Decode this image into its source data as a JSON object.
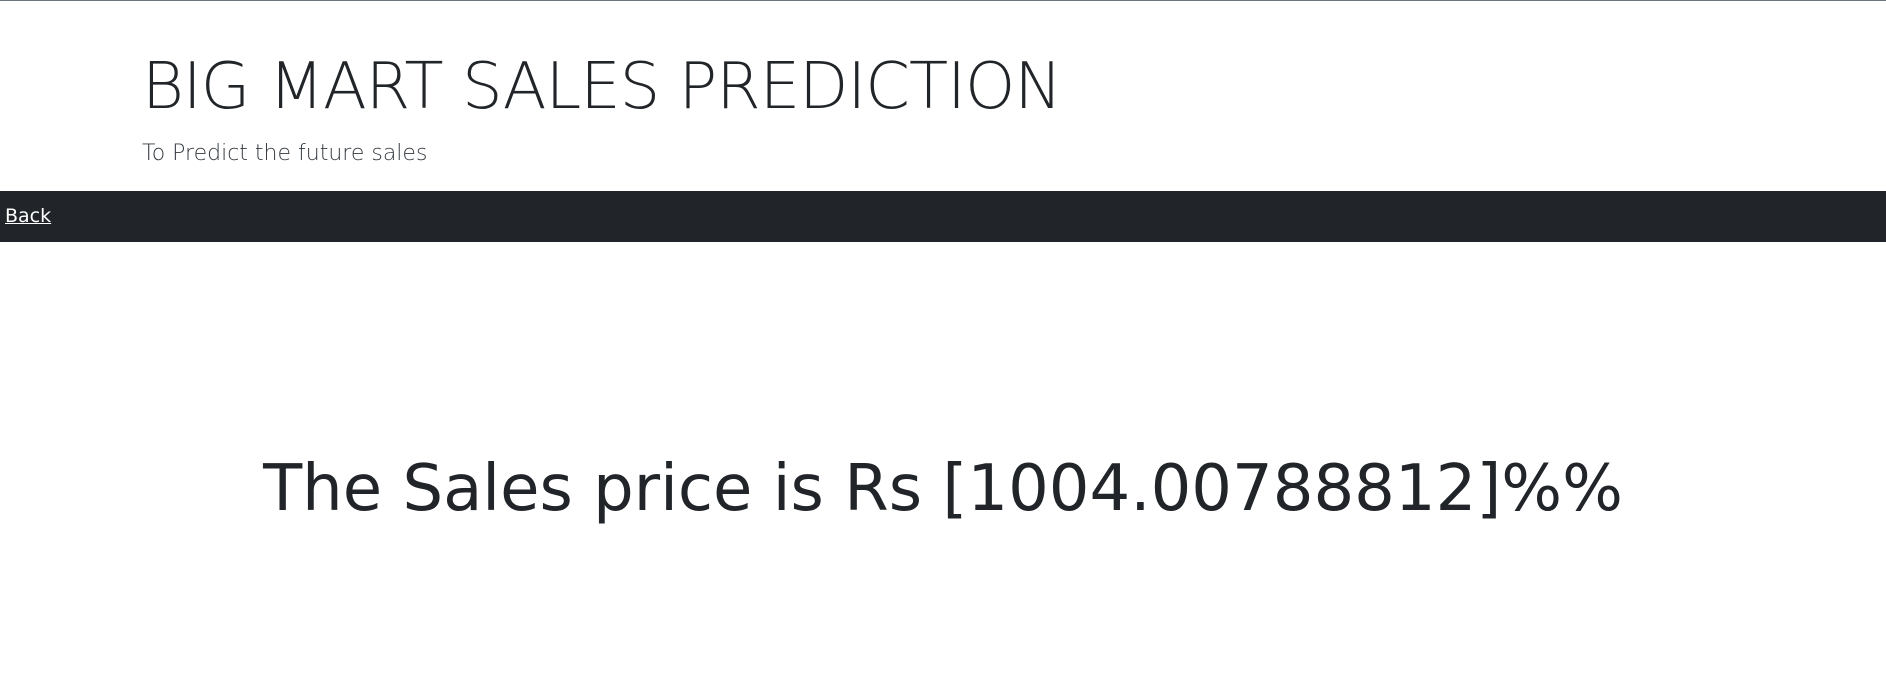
{
  "header": {
    "title": "BIG MART SALES PREDICTION",
    "subtitle": "To Predict the future sales"
  },
  "navbar": {
    "back_label": "Back"
  },
  "main": {
    "result_text": "The Sales price is Rs [1004.00788812]%%"
  },
  "colors": {
    "navbar_background": "#212529",
    "text_primary": "#212529",
    "link_on_dark": "#ffffff"
  }
}
